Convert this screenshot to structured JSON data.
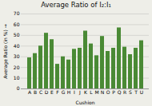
{
  "chart_data": {
    "type": "bar",
    "title": "Average Ratio of I₂:I₁",
    "xlabel": "Cushion",
    "ylabel": "Average Ratio (in %)",
    "categories": [
      "A",
      "B",
      "C",
      "D",
      "E",
      "F",
      "G",
      "H",
      "I",
      "J",
      "K",
      "L",
      "M",
      "N",
      "O",
      "P",
      "Q",
      "R",
      "S",
      "T",
      "U"
    ],
    "values": [
      29,
      33,
      40,
      52,
      46,
      23,
      30,
      27,
      37,
      38,
      54,
      42,
      31,
      49,
      35,
      38,
      57,
      39,
      32,
      38,
      45
    ],
    "color": "#4a8a35",
    "ylim": [
      0,
      70
    ],
    "yticks": [
      0,
      10,
      20,
      30,
      40,
      50,
      60,
      70
    ],
    "grid": true
  }
}
